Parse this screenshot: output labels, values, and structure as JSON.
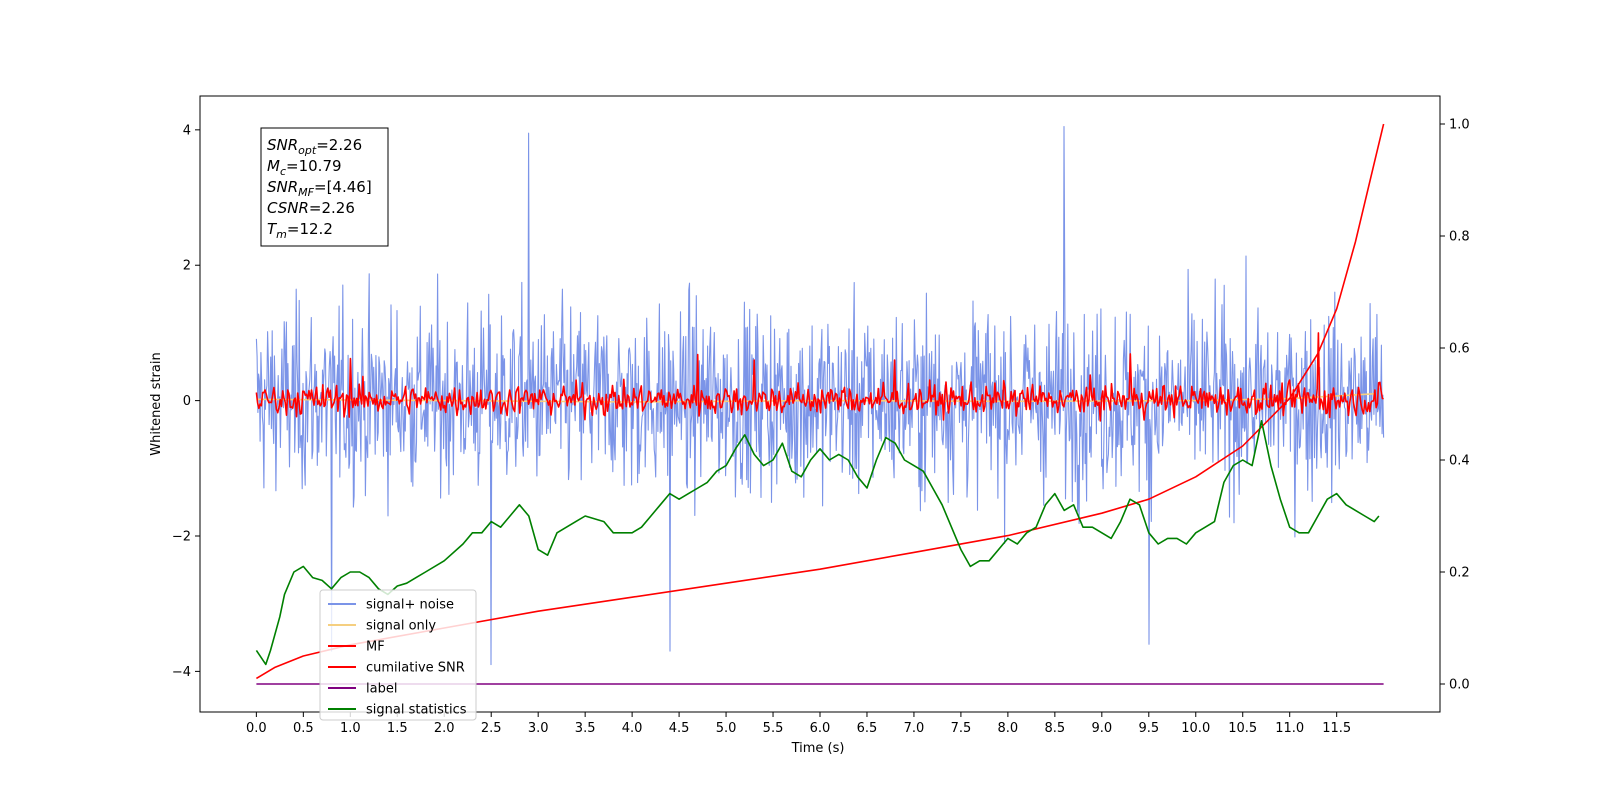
{
  "chart_data": {
    "type": "line",
    "xlabel": "Time (s)",
    "ylabel": "Whitened strain",
    "xlim": [
      -0.6,
      12.6
    ],
    "ylim": [
      -4.6,
      4.5
    ],
    "y2lim": [
      -0.05,
      1.05
    ],
    "x_ticks": [
      0.0,
      0.5,
      1.0,
      1.5,
      2.0,
      2.5,
      3.0,
      3.5,
      4.0,
      4.5,
      5.0,
      5.5,
      6.0,
      6.5,
      7.0,
      7.5,
      8.0,
      8.5,
      9.0,
      9.5,
      10.0,
      10.5,
      11.0,
      11.5
    ],
    "x_tick_labels": [
      "0.0",
      "0.5",
      "1.0",
      "1.5",
      "2.0",
      "2.5",
      "3.0",
      "3.5",
      "4.0",
      "4.5",
      "5.0",
      "5.5",
      "6.0",
      "6.5",
      "7.0",
      "7.5",
      "8.0",
      "8.5",
      "9.0",
      "9.5",
      "10.0",
      "10.5",
      "11.0",
      "11.5"
    ],
    "y_ticks": [
      4,
      2,
      0,
      -2,
      -4
    ],
    "y_tick_labels": [
      "4",
      "2",
      "0",
      "−2",
      "−4"
    ],
    "y2_ticks": [
      0.0,
      0.2,
      0.4,
      0.6,
      0.8,
      1.0
    ],
    "y2_tick_labels": [
      "0.0",
      "0.2",
      "0.4",
      "0.6",
      "0.8",
      "1.0"
    ],
    "grid": false,
    "legend_position": "bottom-left",
    "stats": [
      {
        "sym": "SNR",
        "sub": "opt",
        "rest": "=2.26"
      },
      {
        "sym": "M",
        "sub": "c",
        "rest": "=10.79"
      },
      {
        "sym": "SNR",
        "sub": "MF",
        "rest": "=[4.46]"
      },
      {
        "sym": "CSNR",
        "sub": "",
        "rest": "=2.26"
      },
      {
        "sym": "T",
        "sub": "m",
        "rest": "=12.2"
      }
    ],
    "series": [
      {
        "name": "signal+ noise",
        "color": "#7b94e8",
        "axis": "left",
        "kind": "noise",
        "x_range": [
          0.0,
          12.0
        ],
        "amplitude": [
          -3.7,
          4.05
        ],
        "notable_spikes": [
          [
            2.9,
            3.95
          ],
          [
            8.6,
            4.05
          ],
          [
            4.4,
            -3.7
          ],
          [
            2.5,
            -3.9
          ],
          [
            0.8,
            -3.7
          ],
          [
            9.5,
            -3.6
          ]
        ]
      },
      {
        "name": "signal only",
        "color": "#f5cf80",
        "axis": "left",
        "x": [
          0.0,
          2.0,
          4.0,
          6.0,
          8.0,
          10.0,
          11.0,
          11.9
        ],
        "y": [
          0.02,
          0.0,
          -0.02,
          0.0,
          -0.01,
          0.0,
          0.03,
          0.1
        ]
      },
      {
        "name": "MF",
        "color": "#ff0000",
        "axis": "left",
        "kind": "noise",
        "x_range": [
          0.0,
          12.0
        ],
        "amplitude": [
          -0.4,
          0.68
        ],
        "notable_spikes": [
          [
            1.0,
            0.62
          ],
          [
            4.7,
            0.68
          ],
          [
            5.3,
            0.6
          ],
          [
            6.8,
            0.6
          ],
          [
            9.3,
            0.69
          ],
          [
            11.3,
            1.0
          ]
        ]
      },
      {
        "name": "cumilative SNR",
        "color": "#ff0000",
        "axis": "right",
        "x": [
          0.0,
          0.2,
          0.5,
          1.0,
          2.0,
          3.0,
          4.0,
          5.0,
          6.0,
          7.0,
          8.0,
          9.0,
          9.5,
          10.0,
          10.5,
          11.0,
          11.3,
          11.5,
          11.7,
          11.9,
          12.0
        ],
        "y": [
          0.01,
          0.03,
          0.05,
          0.07,
          0.1,
          0.13,
          0.155,
          0.18,
          0.205,
          0.235,
          0.265,
          0.305,
          0.33,
          0.37,
          0.425,
          0.51,
          0.59,
          0.67,
          0.79,
          0.93,
          1.0
        ]
      },
      {
        "name": "label",
        "color": "#800080",
        "axis": "right",
        "x": [
          0.0,
          12.0
        ],
        "y": [
          0.0,
          0.0
        ]
      },
      {
        "name": "signal statistics",
        "color": "#008000",
        "axis": "right",
        "x": [
          0.0,
          0.1,
          0.15,
          0.25,
          0.3,
          0.4,
          0.5,
          0.6,
          0.7,
          0.8,
          0.9,
          1.0,
          1.1,
          1.2,
          1.3,
          1.4,
          1.5,
          1.6,
          1.7,
          1.8,
          2.0,
          2.2,
          2.3,
          2.4,
          2.5,
          2.6,
          2.7,
          2.8,
          2.9,
          3.0,
          3.1,
          3.2,
          3.4,
          3.5,
          3.7,
          3.8,
          4.0,
          4.1,
          4.2,
          4.3,
          4.4,
          4.5,
          4.6,
          4.7,
          4.8,
          4.9,
          5.0,
          5.1,
          5.2,
          5.3,
          5.4,
          5.5,
          5.6,
          5.7,
          5.8,
          5.9,
          6.0,
          6.1,
          6.2,
          6.3,
          6.4,
          6.5,
          6.6,
          6.7,
          6.8,
          6.9,
          7.0,
          7.1,
          7.2,
          7.3,
          7.4,
          7.5,
          7.6,
          7.7,
          7.8,
          7.9,
          8.0,
          8.1,
          8.2,
          8.3,
          8.4,
          8.5,
          8.6,
          8.7,
          8.8,
          8.9,
          9.0,
          9.1,
          9.2,
          9.3,
          9.4,
          9.5,
          9.6,
          9.7,
          9.8,
          9.9,
          10.0,
          10.1,
          10.2,
          10.3,
          10.4,
          10.5,
          10.6,
          10.7,
          10.8,
          10.9,
          11.0,
          11.1,
          11.2,
          11.3,
          11.4,
          11.5,
          11.6,
          11.7,
          11.8,
          11.9,
          11.95
        ],
        "y": [
          0.06,
          0.035,
          0.06,
          0.12,
          0.16,
          0.2,
          0.21,
          0.19,
          0.185,
          0.17,
          0.19,
          0.2,
          0.2,
          0.19,
          0.17,
          0.16,
          0.175,
          0.18,
          0.19,
          0.2,
          0.22,
          0.25,
          0.27,
          0.27,
          0.29,
          0.28,
          0.3,
          0.32,
          0.3,
          0.24,
          0.23,
          0.27,
          0.29,
          0.3,
          0.29,
          0.27,
          0.27,
          0.28,
          0.3,
          0.32,
          0.34,
          0.33,
          0.34,
          0.35,
          0.36,
          0.38,
          0.39,
          0.42,
          0.445,
          0.41,
          0.39,
          0.4,
          0.43,
          0.38,
          0.37,
          0.4,
          0.42,
          0.4,
          0.41,
          0.4,
          0.37,
          0.35,
          0.4,
          0.44,
          0.43,
          0.4,
          0.39,
          0.38,
          0.35,
          0.32,
          0.28,
          0.24,
          0.21,
          0.22,
          0.22,
          0.24,
          0.26,
          0.25,
          0.27,
          0.28,
          0.32,
          0.34,
          0.31,
          0.32,
          0.28,
          0.28,
          0.27,
          0.26,
          0.29,
          0.33,
          0.32,
          0.27,
          0.25,
          0.26,
          0.26,
          0.25,
          0.27,
          0.28,
          0.29,
          0.36,
          0.39,
          0.4,
          0.39,
          0.47,
          0.39,
          0.33,
          0.28,
          0.27,
          0.27,
          0.3,
          0.33,
          0.34,
          0.32,
          0.31,
          0.3,
          0.29,
          0.3
        ]
      }
    ]
  }
}
